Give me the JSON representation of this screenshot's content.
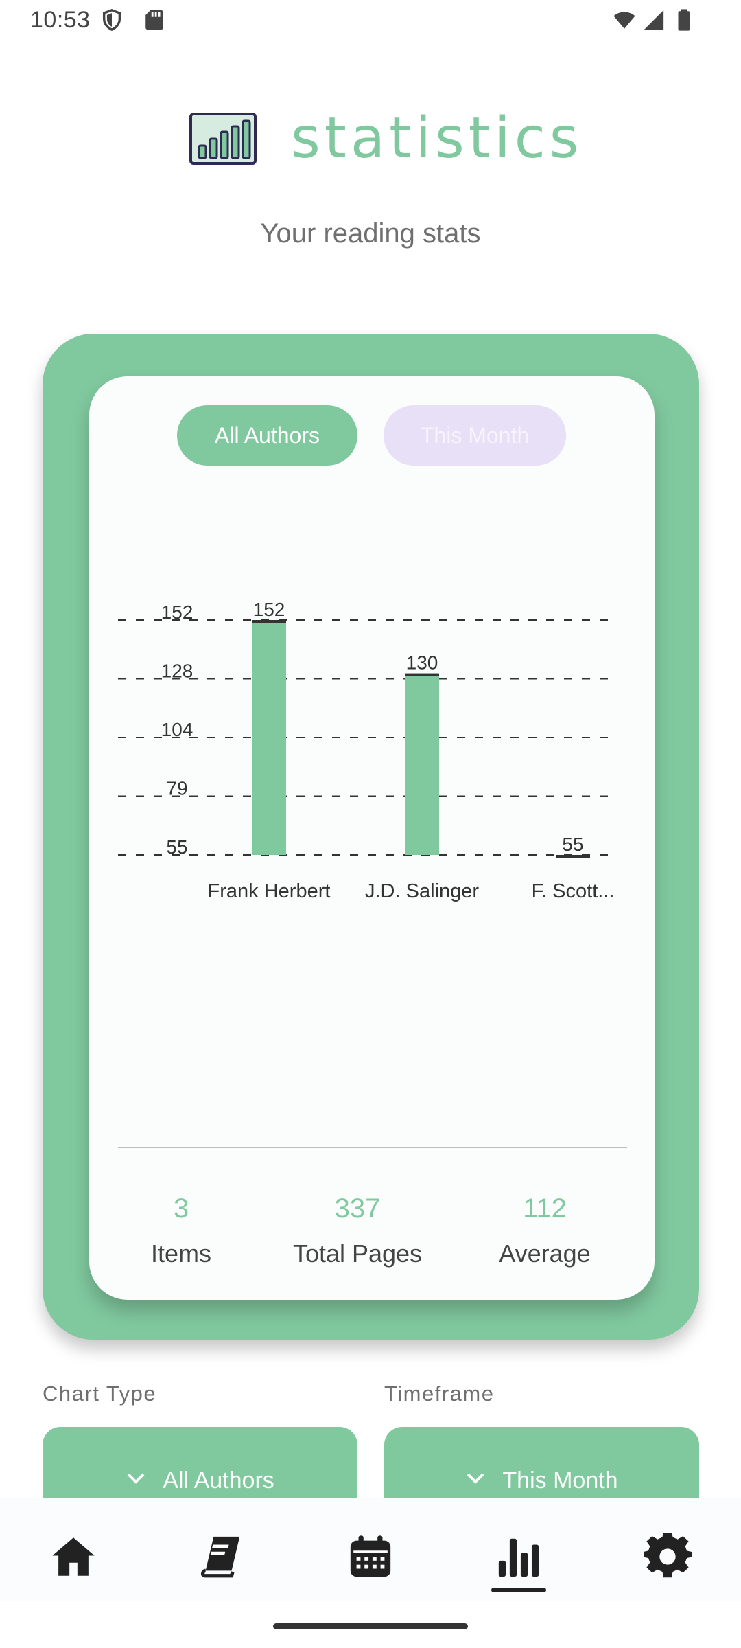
{
  "status_bar": {
    "time": "10:53",
    "left_icons": [
      "shield-icon",
      "sd-card-icon"
    ],
    "right_icons": [
      "wifi-icon",
      "signal-icon",
      "battery-icon"
    ]
  },
  "header": {
    "icon": "bar-chart-icon",
    "title": "statistics",
    "subtitle": "Your reading stats"
  },
  "filters": {
    "chart_type_pill": "All Authors",
    "timeframe_pill": "This Month"
  },
  "chart_data": {
    "type": "bar",
    "categories": [
      "Frank Herbert",
      "J.D. Salinger",
      "F. Scott..."
    ],
    "values": [
      152,
      130,
      55
    ],
    "data_labels": [
      "152",
      "130",
      "55"
    ],
    "y_ticks": [
      "152",
      "128",
      "104",
      "79",
      "55"
    ],
    "ylim": [
      55,
      152
    ],
    "grid": true,
    "bar_color": "#80c99f"
  },
  "summary": {
    "items_value": "3",
    "items_label": "Items",
    "pages_value": "337",
    "pages_label": "Total Pages",
    "average_value": "112",
    "average_label": "Average"
  },
  "selectors": {
    "chart_type_label": "Chart Type",
    "chart_type_value": "All Authors",
    "timeframe_label": "Timeframe",
    "timeframe_value": "This Month"
  },
  "nav": {
    "items": [
      "home-icon",
      "book-icon",
      "calendar-icon",
      "stats-icon",
      "settings-icon"
    ],
    "active": "stats-icon"
  },
  "colors": {
    "accent": "#80c99f",
    "pill_inactive": "#e7e0f6"
  }
}
